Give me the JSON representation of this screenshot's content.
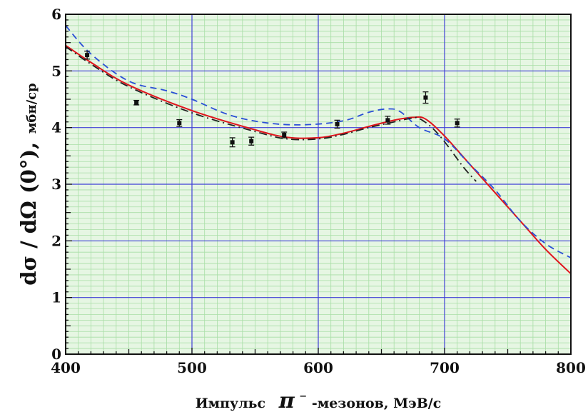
{
  "chart_data": {
    "type": "line",
    "title": "",
    "xlabel_prefix": "Импульс",
    "xlabel_symbol": "π",
    "xlabel_suffix": "-мезонов, МэВ/с",
    "ylabel_main": "dσ / dΩ (0°),",
    "ylabel_units": "мбн/ср",
    "xlim": [
      400,
      800
    ],
    "ylim": [
      0,
      6
    ],
    "xticks": [
      "400",
      "500",
      "600",
      "700",
      "800"
    ],
    "yticks": [
      "0",
      "1",
      "2",
      "3",
      "4",
      "5",
      "6"
    ],
    "grid": true,
    "colors": {
      "background": "#e6f6e3",
      "minor_grid": "#a8dea6",
      "major_grid": "#3f3fd6",
      "red": "#e0141c",
      "blue": "#2a4fd6",
      "dashdot": "#222222",
      "points": "#111111"
    },
    "series": [
      {
        "style": "solid",
        "color": "#e0141c",
        "x": [
          400,
          420,
          450,
          500,
          550,
          575,
          600,
          620,
          640,
          660,
          675,
          685,
          700,
          720,
          740,
          760,
          780,
          800
        ],
        "y": [
          5.45,
          5.15,
          4.75,
          4.3,
          3.96,
          3.83,
          3.82,
          3.9,
          4.02,
          4.13,
          4.18,
          4.15,
          3.85,
          3.35,
          2.85,
          2.35,
          1.85,
          1.42
        ]
      },
      {
        "style": "dashed",
        "color": "#2a4fd6",
        "x": [
          400,
          420,
          450,
          480,
          500,
          530,
          560,
          590,
          620,
          640,
          655,
          665,
          680,
          700,
          720,
          740,
          760,
          780,
          800
        ],
        "y": [
          5.8,
          5.3,
          4.82,
          4.65,
          4.5,
          4.22,
          4.08,
          4.05,
          4.12,
          4.27,
          4.33,
          4.28,
          4.0,
          3.8,
          3.35,
          2.9,
          2.35,
          1.95,
          1.7
        ]
      },
      {
        "style": "dashdot",
        "color": "#222222",
        "x": [
          400,
          420,
          450,
          500,
          550,
          575,
          600,
          620,
          640,
          660,
          675,
          680,
          690,
          700,
          715,
          725
        ],
        "y": [
          5.43,
          5.12,
          4.72,
          4.26,
          3.93,
          3.8,
          3.8,
          3.88,
          4.0,
          4.1,
          4.17,
          4.16,
          4.0,
          3.75,
          3.3,
          3.05
        ]
      }
    ],
    "points": {
      "x": [
        417,
        456,
        490,
        532,
        547,
        573,
        615,
        655,
        685,
        710
      ],
      "y": [
        5.28,
        4.44,
        4.08,
        3.74,
        3.76,
        3.87,
        4.06,
        4.13,
        4.53,
        4.08
      ],
      "err": [
        0.07,
        0.04,
        0.06,
        0.08,
        0.07,
        0.05,
        0.07,
        0.07,
        0.1,
        0.07
      ]
    }
  }
}
